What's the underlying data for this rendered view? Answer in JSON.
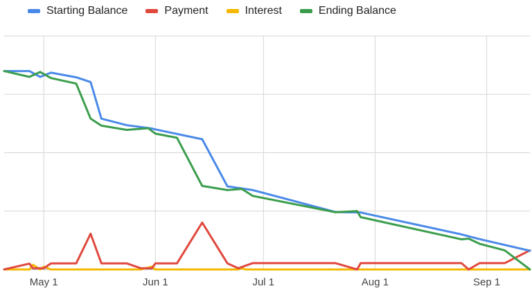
{
  "chart_data": {
    "type": "line",
    "title": "",
    "xlabel": "",
    "ylabel": "",
    "legend_position": "top-left",
    "grid": true,
    "x_ticks": [
      "2024-05-01",
      "2024-06-01",
      "2024-07-01",
      "2024-08-01",
      "2024-09-01"
    ],
    "x_tick_labels": [
      "May 1",
      "Jun 1",
      "Jul 1",
      "Aug 1",
      "Sep 1"
    ],
    "xlim": [
      "2024-04-20",
      "2024-09-13"
    ],
    "ylim": [
      0,
      100
    ],
    "y_gridlines": [
      0,
      25,
      50,
      75,
      100
    ],
    "series": [
      {
        "name": "Starting Balance",
        "color": "#4a89e8",
        "x": [
          "2024-04-20",
          "2024-04-27",
          "2024-04-30",
          "2024-05-03",
          "2024-05-10",
          "2024-05-14",
          "2024-05-17",
          "2024-05-24",
          "2024-05-31",
          "2024-06-01",
          "2024-06-14",
          "2024-06-21",
          "2024-06-28",
          "2024-07-21",
          "2024-07-28",
          "2024-08-25",
          "2024-08-30",
          "2024-09-13"
        ],
        "values": [
          85,
          85,
          82.5,
          84.3,
          82.3,
          80.3,
          64.6,
          61.8,
          60.4,
          60,
          55.8,
          35.6,
          34,
          24.6,
          24.4,
          15,
          13,
          8
        ]
      },
      {
        "name": "Payment",
        "color": "#e0483d",
        "x": [
          "2024-04-20",
          "2024-04-27",
          "2024-04-28",
          "2024-05-01",
          "2024-05-03",
          "2024-05-10",
          "2024-05-14",
          "2024-05-17",
          "2024-05-24",
          "2024-05-28",
          "2024-05-31",
          "2024-06-01",
          "2024-06-07",
          "2024-06-14",
          "2024-06-21",
          "2024-06-24",
          "2024-06-28",
          "2024-07-21",
          "2024-07-27",
          "2024-07-28",
          "2024-08-25",
          "2024-08-27",
          "2024-08-30",
          "2024-09-06",
          "2024-09-13"
        ],
        "values": [
          0,
          2.5,
          0.5,
          0.5,
          2.6,
          2.6,
          15.3,
          2.6,
          2.6,
          0.5,
          0.5,
          2.6,
          2.6,
          20.1,
          2.6,
          0.5,
          2.7,
          2.7,
          0,
          2.7,
          2.7,
          0,
          2.7,
          2.7,
          8.2
        ]
      },
      {
        "name": "Interest",
        "color": "#f5b800",
        "x": [
          "2024-04-20",
          "2024-04-27",
          "2024-04-28",
          "2024-04-30",
          "2024-05-01",
          "2024-05-03",
          "2024-05-28",
          "2024-05-31",
          "2024-06-01",
          "2024-06-24",
          "2024-06-25",
          "2024-06-26",
          "2024-09-13"
        ],
        "values": [
          0,
          0,
          2.0,
          0,
          1.2,
          0,
          0,
          1.2,
          0,
          0,
          0.6,
          0,
          0
        ]
      },
      {
        "name": "Ending Balance",
        "color": "#3a9d4c",
        "x": [
          "2024-04-20",
          "2024-04-27",
          "2024-04-30",
          "2024-05-03",
          "2024-05-10",
          "2024-05-14",
          "2024-05-17",
          "2024-05-24",
          "2024-05-30",
          "2024-06-01",
          "2024-06-07",
          "2024-06-14",
          "2024-06-21",
          "2024-06-25",
          "2024-06-28",
          "2024-07-21",
          "2024-07-27",
          "2024-07-28",
          "2024-08-25",
          "2024-08-27",
          "2024-08-30",
          "2024-09-06",
          "2024-09-13"
        ],
        "values": [
          85,
          82.5,
          84.6,
          82,
          79.6,
          64.6,
          61.6,
          59.8,
          60.5,
          58.2,
          56.4,
          35.8,
          34,
          34.5,
          31.5,
          24.5,
          25,
          22.4,
          12.9,
          13.2,
          11,
          8.2,
          0
        ]
      }
    ]
  }
}
